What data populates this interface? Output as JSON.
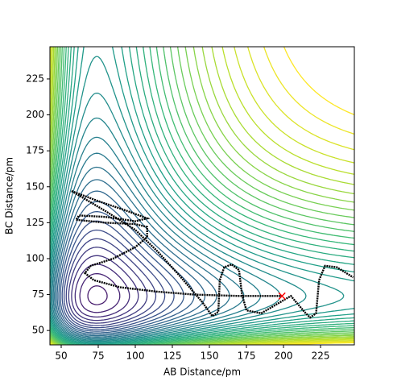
{
  "chart_data": {
    "type": "contour",
    "xlabel": "AB Distance/pm",
    "ylabel": "BC Distance/pm",
    "xlim": [
      42.4,
      247.8
    ],
    "ylim": [
      40,
      247.4
    ],
    "xticks": [
      50,
      75,
      100,
      125,
      150,
      175,
      200,
      225
    ],
    "yticks": [
      50,
      75,
      100,
      125,
      150,
      175,
      200,
      225
    ],
    "series": [
      {
        "color": "#000000",
        "x": [
          57,
          75,
          95,
          108,
          100,
          80,
          62,
          60,
          80,
          100,
          108,
          108,
          100,
          85,
          70,
          66,
          72,
          90,
          115,
          140,
          170,
          199
        ],
        "y": [
          147,
          140,
          133,
          128,
          126,
          129,
          130,
          127,
          125,
          124,
          122,
          115,
          108,
          100,
          95,
          90,
          85,
          80,
          77,
          75,
          74,
          74
        ]
      },
      {
        "color": "#000000",
        "x": [
          57,
          80,
          100,
          115,
          130,
          145,
          152,
          156,
          157,
          160,
          165,
          170,
          172,
          175,
          185,
          195,
          205,
          215,
          218,
          222,
          224,
          228,
          236,
          247
        ],
        "y": [
          147,
          133,
          120,
          105,
          88,
          70,
          60,
          63,
          85,
          94,
          96,
          92,
          75,
          64,
          62,
          68,
          74,
          62,
          59,
          62,
          85,
          95,
          94,
          87
        ]
      }
    ],
    "marker": {
      "x": 199,
      "y": 74,
      "color": "#ff0000"
    }
  }
}
